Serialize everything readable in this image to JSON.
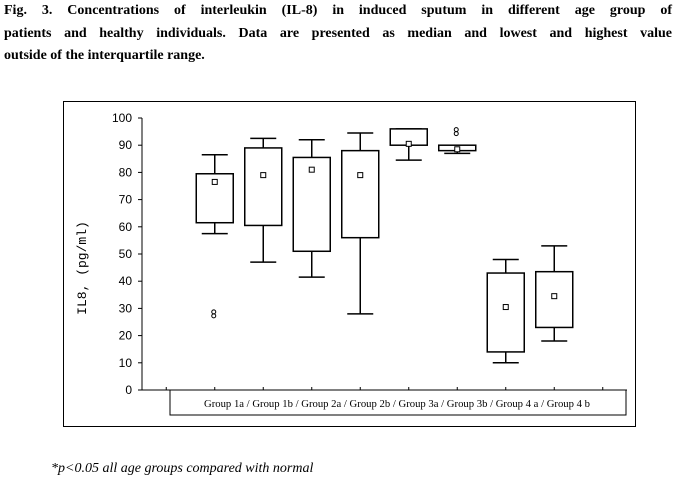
{
  "caption": {
    "lines": [
      "Fig. 3. Concentrations of interleukin (IL-8) in induced sputum in different age group of",
      "patients and healthy individuals. Data are presented as median and lowest and highest value",
      "outside  of the interquartile range."
    ]
  },
  "footnote": "*p<0.05 all age groups compared with normal",
  "chart_data": {
    "type": "box",
    "xlabel": "Group 1a / Group 1b / Group 2a / Group 2b / Group 3a / Group 3b / Group 4 a / Group 4 b",
    "ylabel": "IL8, (pg/ml)",
    "ylim": [
      0,
      100
    ],
    "yticks": [
      "0",
      "10",
      "20",
      "30",
      "40",
      "50",
      "60",
      "70",
      "80",
      "90",
      "100"
    ],
    "grid": false,
    "categories": [
      "Group 1a",
      "Group 1b",
      "Group 2a",
      "Group 2b",
      "Group 3a",
      "Group 3b",
      "Group 4 a",
      "Group 4 b"
    ],
    "boxes": [
      {
        "min": 57.5,
        "q1": 61.5,
        "median": 76.5,
        "q3": 79.5,
        "max": 86.5,
        "outliers": [
          28
        ]
      },
      {
        "min": 47,
        "q1": 60.5,
        "median": 79,
        "q3": 89,
        "max": 92.5,
        "outliers": []
      },
      {
        "min": 41.5,
        "q1": 51,
        "median": 81,
        "q3": 85.5,
        "max": 92,
        "outliers": []
      },
      {
        "min": 28,
        "q1": 56,
        "median": 79,
        "q3": 88,
        "max": 94.5,
        "outliers": []
      },
      {
        "min": 84.5,
        "q1": 90,
        "median": 90.5,
        "q3": 96,
        "max": 96,
        "outliers": []
      },
      {
        "min": 87,
        "q1": 88,
        "median": 88.5,
        "q3": 90,
        "max": 90,
        "outliers": [
          95
        ]
      },
      {
        "min": 10,
        "q1": 14,
        "median": 30.5,
        "q3": 43,
        "max": 48,
        "outliers": []
      },
      {
        "min": 18,
        "q1": 23,
        "median": 34.5,
        "q3": 43.5,
        "max": 53,
        "outliers": []
      }
    ]
  }
}
